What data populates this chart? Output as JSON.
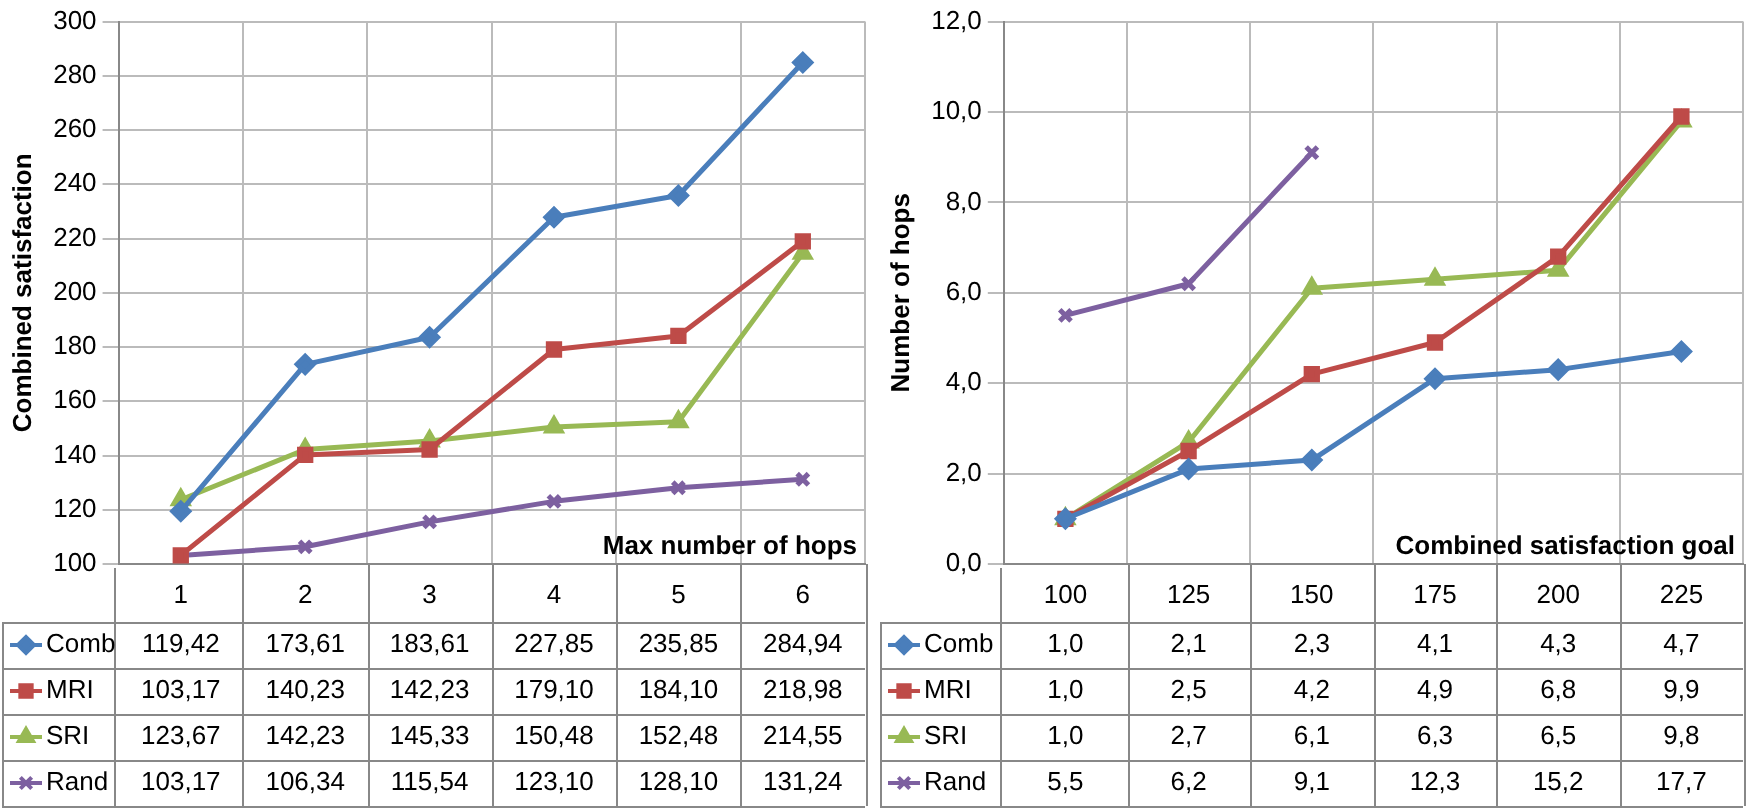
{
  "chart_data": [
    {
      "type": "line",
      "ylabel": "Combined satisfaction",
      "xlabel": "Max number of hops",
      "categories": [
        "1",
        "2",
        "3",
        "4",
        "5",
        "6"
      ],
      "ylim": [
        100,
        300
      ],
      "yticks": [
        100,
        120,
        140,
        160,
        180,
        200,
        220,
        240,
        260,
        280,
        300
      ],
      "grid": true,
      "legend": "bottom",
      "data_labels": true,
      "series": [
        {
          "name": "Comb",
          "color": "#4a7ebb",
          "marker": "diamond",
          "values": [
            119.42,
            173.61,
            183.61,
            227.85,
            235.85,
            284.94
          ],
          "value_labels": [
            "119,42",
            "173,61",
            "183,61",
            "227,85",
            "235,85",
            "284,94"
          ]
        },
        {
          "name": "MRI",
          "color": "#be4b48",
          "marker": "square",
          "values": [
            103.17,
            140.23,
            142.23,
            179.1,
            184.1,
            218.98
          ],
          "value_labels": [
            "103,17",
            "140,23",
            "142,23",
            "179,10",
            "184,10",
            "218,98"
          ]
        },
        {
          "name": "SRI",
          "color": "#98b954",
          "marker": "triangle",
          "values": [
            123.67,
            142.23,
            145.33,
            150.48,
            152.48,
            214.55
          ],
          "value_labels": [
            "123,67",
            "142,23",
            "145,33",
            "150,48",
            "152,48",
            "214,55"
          ]
        },
        {
          "name": "Rand",
          "color": "#7d60a0",
          "marker": "cross",
          "values": [
            103.17,
            106.34,
            115.54,
            123.1,
            128.1,
            131.24
          ],
          "value_labels": [
            "103,17",
            "106,34",
            "115,54",
            "123,10",
            "128,10",
            "131,24"
          ]
        }
      ]
    },
    {
      "type": "line",
      "ylabel": "Number of hops",
      "xlabel": "Combined satisfaction goal",
      "categories": [
        "100",
        "125",
        "150",
        "175",
        "200",
        "225"
      ],
      "ylim": [
        0,
        12
      ],
      "yticks": [
        {
          "value": 0,
          "label": "0,0"
        },
        {
          "value": 2,
          "label": "2,0"
        },
        {
          "value": 4,
          "label": "4,0"
        },
        {
          "value": 6,
          "label": "6,0"
        },
        {
          "value": 8,
          "label": "8,0"
        },
        {
          "value": 10,
          "label": "10,0"
        },
        {
          "value": 12,
          "label": "12,0"
        }
      ],
      "grid": true,
      "legend": "bottom",
      "data_labels": true,
      "series": [
        {
          "name": "Comb",
          "color": "#4a7ebb",
          "marker": "diamond",
          "values": [
            1.0,
            2.1,
            2.3,
            4.1,
            4.3,
            4.7
          ],
          "value_labels": [
            "1,0",
            "2,1",
            "2,3",
            "4,1",
            "4,3",
            "4,7"
          ]
        },
        {
          "name": "MRI",
          "color": "#be4b48",
          "marker": "square",
          "values": [
            1.0,
            2.5,
            4.2,
            4.9,
            6.8,
            9.9
          ],
          "value_labels": [
            "1,0",
            "2,5",
            "4,2",
            "4,9",
            "6,8",
            "9,9"
          ]
        },
        {
          "name": "SRI",
          "color": "#98b954",
          "marker": "triangle",
          "values": [
            1.0,
            2.7,
            6.1,
            6.3,
            6.5,
            9.8
          ],
          "value_labels": [
            "1,0",
            "2,7",
            "6,1",
            "6,3",
            "6,5",
            "9,8"
          ]
        },
        {
          "name": "Rand",
          "color": "#7d60a0",
          "marker": "cross",
          "values": [
            5.5,
            6.2,
            9.1,
            null,
            null,
            null
          ],
          "value_labels": [
            "5,5",
            "6,2",
            "9,1",
            "12,3",
            "15,2",
            "17,7"
          ]
        }
      ]
    }
  ]
}
